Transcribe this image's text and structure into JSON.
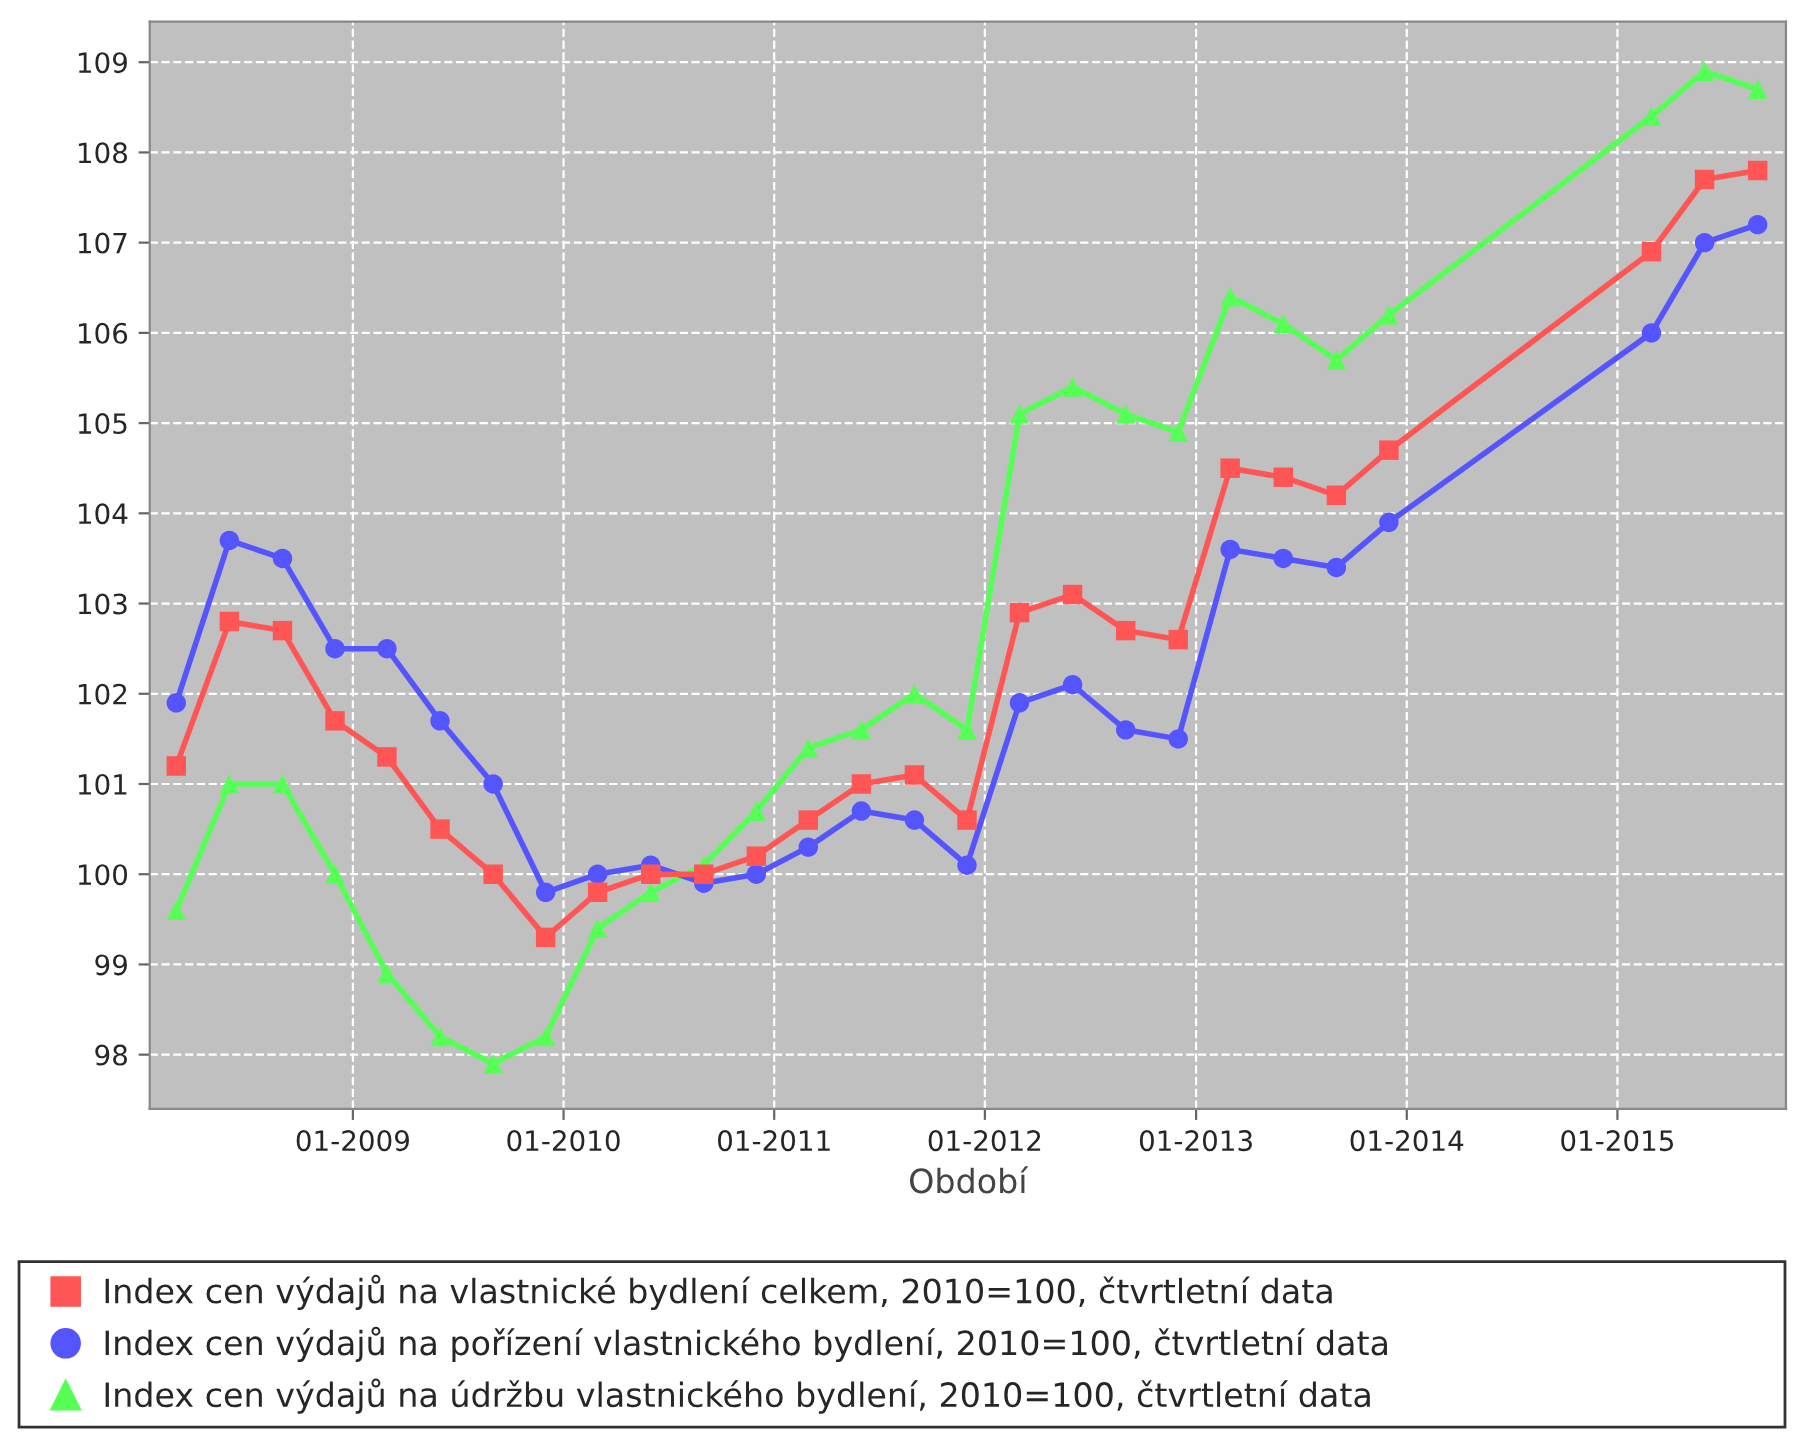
{
  "chart_data": {
    "type": "line",
    "xlabel": "Období",
    "x": [
      "2008-03",
      "2008-06",
      "2008-09",
      "2008-12",
      "2009-03",
      "2009-06",
      "2009-09",
      "2009-12",
      "2010-03",
      "2010-06",
      "2010-09",
      "2010-12",
      "2011-03",
      "2011-06",
      "2011-09",
      "2011-12",
      "2012-03",
      "2012-06",
      "2012-09",
      "2012-12",
      "2013-03",
      "2013-06",
      "2013-09",
      "2013-12",
      "2015-03",
      "2015-06",
      "2015-09"
    ],
    "series": [
      {
        "name": "Index cen výdajů na vlastnické bydlení celkem, 2010=100, čtvrtletní data",
        "color": "#ff5555",
        "marker": "square",
        "values": [
          101.2,
          102.8,
          102.7,
          101.7,
          101.3,
          100.5,
          100.0,
          99.3,
          99.8,
          100.0,
          100.0,
          100.2,
          100.6,
          101.0,
          101.1,
          100.6,
          102.9,
          103.1,
          102.7,
          102.6,
          104.5,
          104.4,
          104.2,
          104.7,
          106.9,
          107.7,
          107.8
        ]
      },
      {
        "name": "Index cen výdajů na pořízení vlastnického bydlení, 2010=100, čtvrtletní data",
        "color": "#5555ff",
        "marker": "circle",
        "values": [
          101.9,
          103.7,
          103.5,
          102.5,
          102.5,
          101.7,
          101.0,
          99.8,
          100.0,
          100.1,
          99.9,
          100.0,
          100.3,
          100.7,
          100.6,
          100.1,
          101.9,
          102.1,
          101.6,
          101.5,
          103.6,
          103.5,
          103.4,
          103.9,
          106.0,
          107.0,
          107.2
        ]
      },
      {
        "name": "Index cen výdajů na údržbu vlastnického bydlení, 2010=100, čtvrtletní data",
        "color": "#55ff55",
        "marker": "triangle",
        "values": [
          99.6,
          101.0,
          101.0,
          100.0,
          98.9,
          98.2,
          97.9,
          98.2,
          99.4,
          99.8,
          100.1,
          100.7,
          101.4,
          101.6,
          102.0,
          101.6,
          105.1,
          105.4,
          105.1,
          104.9,
          106.4,
          106.1,
          105.7,
          106.2,
          108.4,
          108.9,
          108.7
        ]
      }
    ],
    "xlim": [
      "2008-01-15",
      "2015-10-20"
    ],
    "xticks": [
      {
        "value": "2009-01",
        "label": "01-2009"
      },
      {
        "value": "2010-01",
        "label": "01-2010"
      },
      {
        "value": "2011-01",
        "label": "01-2011"
      },
      {
        "value": "2012-01",
        "label": "01-2012"
      },
      {
        "value": "2013-01",
        "label": "01-2013"
      },
      {
        "value": "2014-01",
        "label": "01-2014"
      },
      {
        "value": "2015-01",
        "label": "01-2015"
      }
    ],
    "ylim": [
      97.4,
      109.45
    ],
    "yticks": [
      98,
      99,
      100,
      101,
      102,
      103,
      104,
      105,
      106,
      107,
      108,
      109
    ],
    "grid": true,
    "legend": "bottom",
    "line_style": "solid"
  }
}
